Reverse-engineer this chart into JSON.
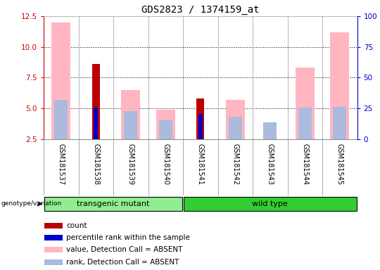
{
  "title": "GDS2823 / 1374159_at",
  "samples": [
    "GSM181537",
    "GSM181538",
    "GSM181539",
    "GSM181540",
    "GSM181541",
    "GSM181542",
    "GSM181543",
    "GSM181544",
    "GSM181545"
  ],
  "ylim_left": [
    2.5,
    12.5
  ],
  "ylim_right": [
    0,
    100
  ],
  "yticks_left": [
    2.5,
    5.0,
    7.5,
    10.0,
    12.5
  ],
  "yticks_right": [
    0,
    25,
    50,
    75,
    100
  ],
  "grid_yticks": [
    5.0,
    7.5,
    10.0
  ],
  "left_axis_color": "#CC0000",
  "right_axis_color": "#0000CC",
  "count_values": [
    0,
    8.6,
    0,
    0,
    5.8,
    0,
    0,
    0,
    0
  ],
  "count_color": "#BB0000",
  "percentile_values": [
    0,
    5.05,
    0,
    0,
    4.55,
    0,
    0,
    0,
    0
  ],
  "percentile_color": "#0000CC",
  "absent_value_values": [
    12.0,
    0,
    6.5,
    4.9,
    0,
    5.7,
    0,
    8.3,
    11.2
  ],
  "absent_value_color": "#FFB6C1",
  "absent_rank_values": [
    5.7,
    0,
    4.75,
    4.05,
    0,
    4.3,
    3.88,
    5.05,
    5.1
  ],
  "absent_rank_color": "#AABBDD",
  "background_color": "#ffffff",
  "label_area_color": "#d3d3d3",
  "transgenic_count": 4,
  "wild_type_count": 5,
  "group_light_color": "#90EE90",
  "group_dark_color": "#32CD32",
  "legend_items": [
    {
      "label": "count",
      "color": "#BB0000"
    },
    {
      "label": "percentile rank within the sample",
      "color": "#0000CC"
    },
    {
      "label": "value, Detection Call = ABSENT",
      "color": "#FFB6C1"
    },
    {
      "label": "rank, Detection Call = ABSENT",
      "color": "#AABBDD"
    }
  ]
}
